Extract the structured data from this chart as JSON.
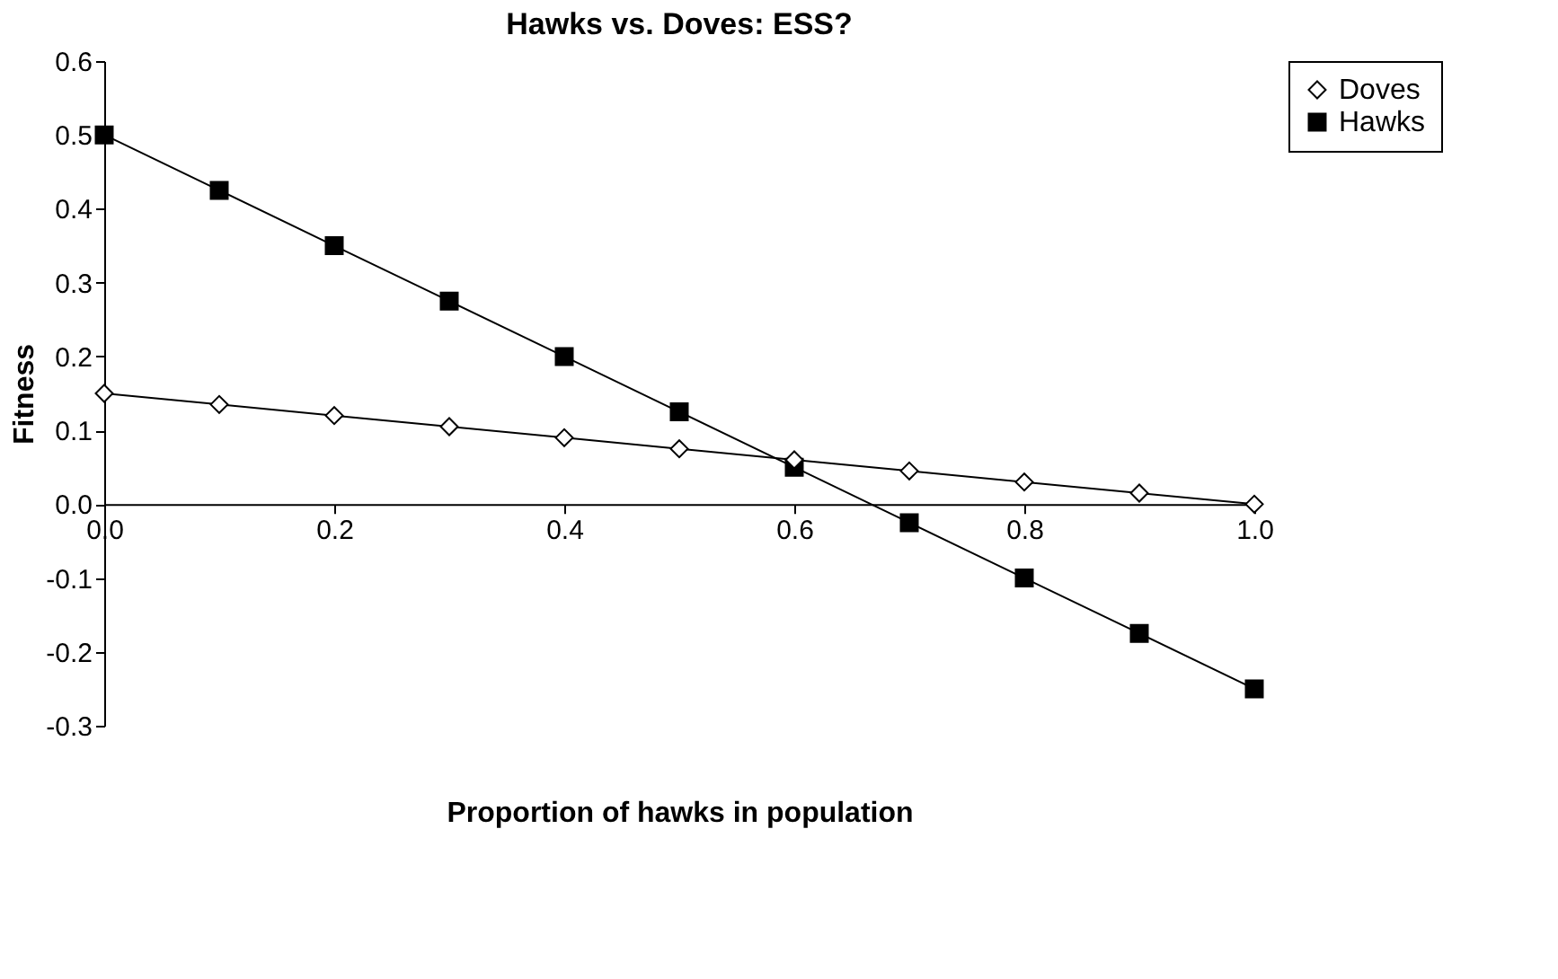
{
  "chart_data": {
    "type": "line",
    "title": "Hawks vs. Doves: ESS?",
    "xlabel": "Proportion of hawks in population",
    "ylabel": "Fitness",
    "x": [
      0,
      0.1,
      0.2,
      0.3,
      0.4,
      0.5,
      0.6,
      0.7,
      0.8,
      0.9,
      1.0
    ],
    "series": [
      {
        "name": "Doves",
        "color": "#000000",
        "marker": "diamond",
        "values": [
          0.15,
          0.135,
          0.12,
          0.105,
          0.09,
          0.075,
          0.06,
          0.045,
          0.03,
          0.015,
          0.0
        ]
      },
      {
        "name": "Hawks",
        "color": "#000000",
        "marker": "square",
        "values": [
          0.5,
          0.425,
          0.35,
          0.275,
          0.2,
          0.125,
          0.05,
          -0.025,
          -0.1,
          -0.175,
          -0.25
        ]
      }
    ],
    "xlim": [
      0,
      1.0
    ],
    "xticks": [
      {
        "value": 0,
        "label": "0.0"
      },
      {
        "value": 0.2,
        "label": "0.2"
      },
      {
        "value": 0.4,
        "label": "0.4"
      },
      {
        "value": 0.6,
        "label": "0.6"
      },
      {
        "value": 0.8,
        "label": "0.8"
      },
      {
        "value": 1.0,
        "label": "1.0"
      }
    ],
    "ylim": [
      -0.3,
      0.6
    ],
    "yticks": [
      {
        "value": -0.3,
        "label": "-0.3"
      },
      {
        "value": -0.2,
        "label": "-0.2"
      },
      {
        "value": -0.1,
        "label": "-0.1"
      },
      {
        "value": 0,
        "label": "0.0"
      },
      {
        "value": 0.1,
        "label": "0.1"
      },
      {
        "value": 0.2,
        "label": "0.2"
      },
      {
        "value": 0.3,
        "label": "0.3"
      },
      {
        "value": 0.4,
        "label": "0.4"
      },
      {
        "value": 0.5,
        "label": "0.5"
      },
      {
        "value": 0.6,
        "label": "0.6"
      }
    ],
    "grid": false,
    "legend": "right",
    "line_style": "solid"
  }
}
